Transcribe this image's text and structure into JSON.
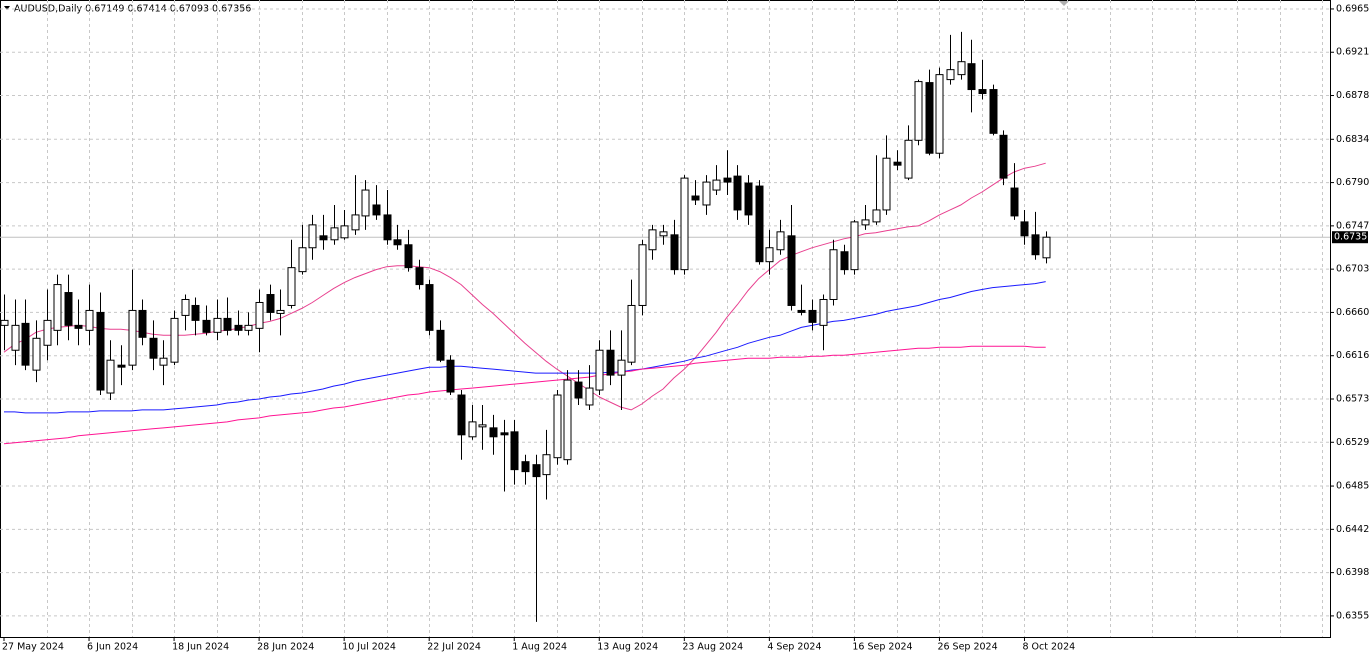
{
  "chart_data": {
    "type": "candlestick",
    "title": "AUDUSD,Daily 0.67149 0.67414 0.67093 0.67356",
    "categories": [
      "27 May 2024",
      null,
      null,
      null,
      null,
      null,
      null,
      null,
      "6 Jun 2024",
      null,
      null,
      null,
      null,
      null,
      null,
      null,
      "18 Jun 2024",
      null,
      null,
      null,
      null,
      null,
      null,
      null,
      "28 Jun 2024",
      null,
      null,
      null,
      null,
      null,
      null,
      null,
      "10 Jul 2024",
      null,
      null,
      null,
      null,
      null,
      null,
      null,
      "22 Jul 2024",
      null,
      null,
      null,
      null,
      null,
      null,
      null,
      "1 Aug 2024",
      null,
      null,
      null,
      null,
      null,
      null,
      null,
      "13 Aug 2024",
      null,
      null,
      null,
      null,
      null,
      null,
      null,
      "23 Aug 2024",
      null,
      null,
      null,
      null,
      null,
      null,
      null,
      "4 Sep 2024",
      null,
      null,
      null,
      null,
      null,
      null,
      null,
      "16 Sep 2024",
      null,
      null,
      null,
      null,
      null,
      null,
      null,
      "26 Sep 2024",
      null,
      null,
      null,
      null,
      null,
      null,
      null,
      "8 Oct 2024",
      null,
      null
    ],
    "open": [
      0.6647,
      0.6622,
      0.6649,
      0.6602,
      0.6627,
      0.6642,
      0.668,
      0.6647,
      0.6642,
      0.666,
      0.6579,
      0.6607,
      0.6607,
      0.6662,
      0.6634,
      0.6607,
      0.661,
      0.6657,
      0.6667,
      0.6652,
      0.664,
      0.6654,
      0.6647,
      0.6642,
      0.6644,
      0.6678,
      0.6659,
      0.6667,
      0.6701,
      0.6725,
      0.6737,
      0.6733,
      0.6735,
      0.6743,
      0.6757,
      0.6768,
      0.6758,
      0.6733,
      0.6728,
      0.6705,
      0.6688,
      0.6642,
      0.6612,
      0.6577,
      0.6535,
      0.6545,
      0.6544,
      0.6539,
      0.654,
      0.651,
      0.6507,
      0.6497,
      0.6514,
      0.6512,
      0.659,
      0.6567,
      0.6582,
      0.6622,
      0.6597,
      0.661,
      0.6667,
      0.6723,
      0.6737,
      0.6738,
      0.6703,
      0.6777,
      0.6768,
      0.6783,
      0.6795,
      0.6797,
      0.679,
      0.6787,
      0.6711,
      0.6723,
      0.6737,
      0.6662,
      0.6662,
      0.6647,
      0.6673,
      0.6721,
      0.6703,
      0.6748,
      0.6751,
      0.6763,
      0.6811,
      0.6795,
      0.6833,
      0.6891,
      0.682,
      0.6894,
      0.6899,
      0.691,
      0.6884,
      0.6884,
      0.6838,
      0.6785,
      0.6751,
      0.6738,
      0.67149
    ],
    "high": [
      0.6678,
      0.6673,
      0.6673,
      0.6652,
      0.6683,
      0.6698,
      0.6698,
      0.6673,
      0.6688,
      0.668,
      0.6632,
      0.6627,
      0.6703,
      0.6673,
      0.6652,
      0.6632,
      0.6662,
      0.6678,
      0.6675,
      0.6667,
      0.6673,
      0.6675,
      0.6662,
      0.666,
      0.6683,
      0.6688,
      0.6683,
      0.6733,
      0.6748,
      0.6758,
      0.6758,
      0.6768,
      0.6763,
      0.6798,
      0.6793,
      0.6788,
      0.6783,
      0.6748,
      0.6743,
      0.6713,
      0.6693,
      0.6652,
      0.6617,
      0.6582,
      0.6567,
      0.6567,
      0.6557,
      0.6552,
      0.6552,
      0.6517,
      0.6517,
      0.6542,
      0.6582,
      0.6602,
      0.6602,
      0.6607,
      0.6632,
      0.6642,
      0.6642,
      0.6693,
      0.6733,
      0.6748,
      0.6748,
      0.6753,
      0.6798,
      0.6793,
      0.6798,
      0.6808,
      0.6823,
      0.6808,
      0.6798,
      0.6793,
      0.6743,
      0.6753,
      0.6768,
      0.6688,
      0.6673,
      0.6678,
      0.6733,
      0.6728,
      0.6753,
      0.6768,
      0.6818,
      0.6838,
      0.6823,
      0.6848,
      0.6894,
      0.6904,
      0.6906,
      0.6939,
      0.6942,
      0.6934,
      0.6914,
      0.6889,
      0.6843,
      0.681,
      0.6763,
      0.6761,
      0.67414
    ],
    "low": [
      0.6622,
      0.6607,
      0.6602,
      0.659,
      0.6612,
      0.6627,
      0.6632,
      0.6627,
      0.6627,
      0.6577,
      0.6572,
      0.6587,
      0.6602,
      0.6627,
      0.6602,
      0.6587,
      0.6607,
      0.6642,
      0.6637,
      0.6637,
      0.6632,
      0.6637,
      0.6637,
      0.6637,
      0.662,
      0.6652,
      0.6637,
      0.6664,
      0.6698,
      0.6713,
      0.6723,
      0.6728,
      0.6733,
      0.6738,
      0.6743,
      0.6753,
      0.6728,
      0.6723,
      0.6701,
      0.6683,
      0.6637,
      0.661,
      0.6577,
      0.6512,
      0.6532,
      0.6522,
      0.6517,
      0.648,
      0.6487,
      0.6487,
      0.6349,
      0.6472,
      0.6507,
      0.6507,
      0.6567,
      0.6562,
      0.6577,
      0.6587,
      0.6562,
      0.6607,
      0.6657,
      0.6713,
      0.6728,
      0.6698,
      0.6698,
      0.6768,
      0.6758,
      0.6778,
      0.6778,
      0.6753,
      0.6748,
      0.6708,
      0.6698,
      0.6718,
      0.6662,
      0.6657,
      0.6642,
      0.6622,
      0.6667,
      0.6698,
      0.6698,
      0.6743,
      0.6748,
      0.6758,
      0.6803,
      0.6793,
      0.6828,
      0.6818,
      0.6815,
      0.6889,
      0.6894,
      0.6861,
      0.6874,
      0.6838,
      0.6788,
      0.6753,
      0.6728,
      0.6713,
      0.67093
    ],
    "close": [
      0.6652,
      0.6647,
      0.6607,
      0.6634,
      0.6652,
      0.6688,
      0.6647,
      0.6644,
      0.6662,
      0.6582,
      0.6612,
      0.6605,
      0.6662,
      0.6635,
      0.6614,
      0.6614,
      0.6654,
      0.6673,
      0.6652,
      0.664,
      0.6654,
      0.6642,
      0.6642,
      0.6647,
      0.667,
      0.666,
      0.6662,
      0.6705,
      0.6725,
      0.6748,
      0.6733,
      0.6745,
      0.6747,
      0.6758,
      0.6783,
      0.6758,
      0.6733,
      0.6728,
      0.6705,
      0.6688,
      0.6642,
      0.6612,
      0.658,
      0.6537,
      0.655,
      0.6547,
      0.6535,
      0.6537,
      0.6502,
      0.65,
      0.6495,
      0.6517,
      0.6577,
      0.6592,
      0.6574,
      0.6584,
      0.6622,
      0.6597,
      0.6612,
      0.6667,
      0.6728,
      0.6743,
      0.6741,
      0.6703,
      0.6795,
      0.6773,
      0.6791,
      0.6793,
      0.6791,
      0.6763,
      0.6758,
      0.6711,
      0.6725,
      0.6741,
      0.6667,
      0.666,
      0.665,
      0.6673,
      0.6723,
      0.6703,
      0.6751,
      0.6753,
      0.6763,
      0.6815,
      0.6808,
      0.6833,
      0.6892,
      0.682,
      0.6899,
      0.6904,
      0.6912,
      0.6884,
      0.688,
      0.684,
      0.6795,
      0.6757,
      0.6737,
      0.6718,
      0.67356
    ],
    "up_color": "#ffffff",
    "down_color": "#000000",
    "lines": [
      {
        "color": "#e8408f",
        "values": [
          0.662,
          0.6628,
          0.6633,
          0.664,
          0.6643,
          0.6645,
          0.6646,
          0.6647,
          0.6646,
          0.6644,
          0.6643,
          0.6643,
          0.6642,
          0.664,
          0.6638,
          0.6637,
          0.6637,
          0.6637,
          0.6638,
          0.6639,
          0.6641,
          0.6642,
          0.6644,
          0.6646,
          0.6649,
          0.6651,
          0.6654,
          0.6659,
          0.6664,
          0.667,
          0.6677,
          0.6684,
          0.669,
          0.6695,
          0.6699,
          0.6703,
          0.6706,
          0.6707,
          0.6707,
          0.6706,
          0.6705,
          0.6701,
          0.6695,
          0.6688,
          0.6678,
          0.6668,
          0.6659,
          0.6649,
          0.6639,
          0.6629,
          0.662,
          0.6611,
          0.6603,
          0.6596,
          0.6589,
          0.6582,
          0.6575,
          0.657,
          0.6565,
          0.6562,
          0.6568,
          0.6576,
          0.6583,
          0.6594,
          0.6603,
          0.6614,
          0.6627,
          0.664,
          0.6655,
          0.6668,
          0.6682,
          0.6694,
          0.6703,
          0.6712,
          0.6717,
          0.6721,
          0.6725,
          0.6728,
          0.6731,
          0.6734,
          0.6736,
          0.6739,
          0.674,
          0.6742,
          0.6744,
          0.6746,
          0.6747,
          0.6752,
          0.6758,
          0.6763,
          0.6768,
          0.6775,
          0.6781,
          0.6788,
          0.6795,
          0.6801,
          0.6805,
          0.6807,
          0.681
        ]
      },
      {
        "color": "#1a1aff",
        "values": [
          0.656,
          0.656,
          0.6559,
          0.6559,
          0.6559,
          0.6559,
          0.656,
          0.656,
          0.656,
          0.6561,
          0.6561,
          0.6561,
          0.6561,
          0.6562,
          0.6562,
          0.6562,
          0.6563,
          0.6564,
          0.6565,
          0.6566,
          0.6567,
          0.6569,
          0.657,
          0.6572,
          0.6573,
          0.6575,
          0.6576,
          0.6578,
          0.6579,
          0.6581,
          0.6583,
          0.6586,
          0.6588,
          0.6591,
          0.6593,
          0.6595,
          0.6597,
          0.6599,
          0.6601,
          0.6603,
          0.6605,
          0.6605,
          0.6606,
          0.6606,
          0.6605,
          0.6604,
          0.6603,
          0.6602,
          0.6601,
          0.66,
          0.6599,
          0.6599,
          0.6599,
          0.6599,
          0.6599,
          0.6599,
          0.6599,
          0.66,
          0.66,
          0.6602,
          0.6603,
          0.6605,
          0.6607,
          0.6609,
          0.6611,
          0.6614,
          0.6616,
          0.6619,
          0.6622,
          0.6625,
          0.6629,
          0.6632,
          0.6635,
          0.6637,
          0.6641,
          0.6645,
          0.6647,
          0.6649,
          0.6651,
          0.6652,
          0.6654,
          0.6656,
          0.6658,
          0.6661,
          0.6663,
          0.6665,
          0.6667,
          0.667,
          0.6673,
          0.6675,
          0.6678,
          0.6681,
          0.6683,
          0.6685,
          0.6686,
          0.6687,
          0.6688,
          0.6689,
          0.6691
        ]
      },
      {
        "color": "#ff1493",
        "values": [
          0.6528,
          0.6529,
          0.653,
          0.6531,
          0.6532,
          0.6533,
          0.6534,
          0.6536,
          0.6537,
          0.6538,
          0.6539,
          0.654,
          0.6541,
          0.6542,
          0.6543,
          0.6544,
          0.6545,
          0.6546,
          0.6547,
          0.6548,
          0.6549,
          0.655,
          0.6552,
          0.6553,
          0.6554,
          0.6556,
          0.6557,
          0.6558,
          0.6559,
          0.656,
          0.6562,
          0.6564,
          0.6565,
          0.6567,
          0.6569,
          0.6571,
          0.6573,
          0.6575,
          0.6577,
          0.6578,
          0.658,
          0.6581,
          0.6582,
          0.6583,
          0.6584,
          0.6585,
          0.6586,
          0.6587,
          0.6588,
          0.6589,
          0.659,
          0.6591,
          0.6592,
          0.6593,
          0.6594,
          0.6595,
          0.6597,
          0.6598,
          0.66,
          0.6601,
          0.6603,
          0.6604,
          0.6605,
          0.6606,
          0.6607,
          0.6609,
          0.661,
          0.6611,
          0.6612,
          0.6613,
          0.6614,
          0.6614,
          0.6614,
          0.6615,
          0.6615,
          0.6615,
          0.6616,
          0.6616,
          0.6617,
          0.6617,
          0.6618,
          0.6619,
          0.662,
          0.6621,
          0.6622,
          0.6623,
          0.6624,
          0.6624,
          0.6625,
          0.6625,
          0.6625,
          0.6626,
          0.6626,
          0.6626,
          0.6626,
          0.6626,
          0.6626,
          0.6625,
          0.6625
        ]
      }
    ],
    "price_line": {
      "value": 0.67356,
      "label": "0.67356"
    },
    "ylim": [
      0.63338,
      0.6974
    ],
    "yticks": [
      {
        "value": 0.6965,
        "label": "0.69650"
      },
      {
        "value": 0.69215,
        "label": "0.69215"
      },
      {
        "value": 0.6878,
        "label": "0.68780"
      },
      {
        "value": 0.6834,
        "label": "0.68340"
      },
      {
        "value": 0.67905,
        "label": "0.67905"
      },
      {
        "value": 0.6747,
        "label": "0.67470"
      },
      {
        "value": 0.67035,
        "label": "0.67035"
      },
      {
        "value": 0.666,
        "label": "0.66600"
      },
      {
        "value": 0.66165,
        "label": "0.66165"
      },
      {
        "value": 0.6573,
        "label": "0.65730"
      },
      {
        "value": 0.65295,
        "label": "0.65295"
      },
      {
        "value": 0.64855,
        "label": "0.64855"
      },
      {
        "value": 0.6442,
        "label": "0.64420"
      },
      {
        "value": 0.63985,
        "label": "0.63985"
      },
      {
        "value": 0.6355,
        "label": "0.63550"
      }
    ],
    "grid": true
  }
}
